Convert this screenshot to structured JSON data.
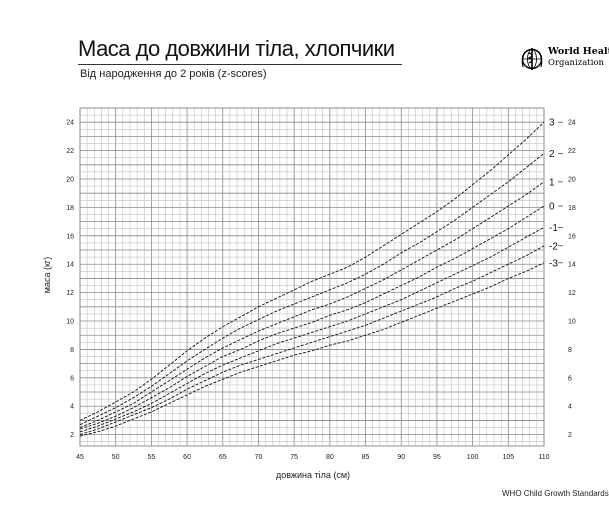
{
  "header": {
    "title": "Маса до довжини тіла, хлопчики",
    "subtitle": "Від народження до 2 років (z-scores)"
  },
  "logo": {
    "name": "World Health",
    "org": "Organization",
    "icon": "who-emblem-icon"
  },
  "footer": {
    "text": "WHO Child Growth Standards"
  },
  "chart_data": {
    "type": "line",
    "title": "Маса до довжини тіла, хлопчики",
    "subtitle": "Від народження до 2 років (z-scores)",
    "xlabel": "довжина тіла (см)",
    "ylabel": "маса (кг)",
    "xlim": [
      45,
      110
    ],
    "ylim": [
      1.2,
      25
    ],
    "xticks": [
      45,
      50,
      55,
      60,
      65,
      70,
      75,
      80,
      85,
      90,
      95,
      100,
      105,
      110
    ],
    "yticks": [
      2,
      4,
      6,
      8,
      10,
      12,
      14,
      16,
      18,
      20,
      22,
      24
    ],
    "grid": true,
    "x": [
      45,
      47.5,
      50,
      52.5,
      55,
      57.5,
      60,
      62.5,
      65,
      67.5,
      70,
      72.5,
      75,
      77.5,
      80,
      82.5,
      85,
      87.5,
      90,
      92.5,
      95,
      97.5,
      100,
      102.5,
      105,
      107.5,
      110
    ],
    "series": [
      {
        "name": "3",
        "values": [
          3.0,
          3.6,
          4.3,
          5.0,
          5.9,
          6.9,
          7.9,
          8.8,
          9.6,
          10.3,
          11.0,
          11.6,
          12.2,
          12.8,
          13.3,
          13.8,
          14.5,
          15.3,
          16.1,
          16.9,
          17.7,
          18.6,
          19.6,
          20.6,
          21.7,
          22.8,
          24.0
        ]
      },
      {
        "name": "2",
        "values": [
          2.7,
          3.3,
          3.9,
          4.6,
          5.4,
          6.3,
          7.2,
          8.0,
          8.8,
          9.5,
          10.1,
          10.7,
          11.2,
          11.7,
          12.2,
          12.7,
          13.3,
          14.0,
          14.8,
          15.5,
          16.3,
          17.1,
          18.0,
          18.9,
          19.8,
          20.8,
          21.8
        ]
      },
      {
        "name": "1",
        "values": [
          2.5,
          3.0,
          3.6,
          4.2,
          5.0,
          5.8,
          6.6,
          7.4,
          8.1,
          8.7,
          9.3,
          9.8,
          10.3,
          10.8,
          11.2,
          11.7,
          12.3,
          12.9,
          13.6,
          14.3,
          15.0,
          15.7,
          16.5,
          17.3,
          18.1,
          18.9,
          19.8
        ]
      },
      {
        "name": "0",
        "values": [
          2.4,
          2.8,
          3.3,
          3.9,
          4.6,
          5.3,
          6.1,
          6.8,
          7.5,
          8.0,
          8.6,
          9.1,
          9.5,
          9.9,
          10.4,
          10.8,
          11.3,
          11.9,
          12.5,
          13.1,
          13.8,
          14.4,
          15.1,
          15.8,
          16.5,
          17.3,
          18.1
        ]
      },
      {
        "name": "-1",
        "values": [
          2.2,
          2.6,
          3.1,
          3.6,
          4.2,
          4.9,
          5.6,
          6.3,
          6.9,
          7.4,
          7.9,
          8.4,
          8.8,
          9.2,
          9.6,
          10.0,
          10.5,
          11.0,
          11.5,
          12.1,
          12.7,
          13.3,
          13.9,
          14.5,
          15.2,
          15.9,
          16.6
        ]
      },
      {
        "name": "-2",
        "values": [
          2.0,
          2.4,
          2.9,
          3.4,
          3.9,
          4.5,
          5.2,
          5.8,
          6.4,
          6.9,
          7.3,
          7.7,
          8.1,
          8.5,
          8.9,
          9.3,
          9.7,
          10.2,
          10.7,
          11.2,
          11.7,
          12.3,
          12.8,
          13.4,
          14.0,
          14.6,
          15.3
        ]
      },
      {
        "name": "-3",
        "values": [
          1.9,
          2.2,
          2.6,
          3.1,
          3.6,
          4.2,
          4.8,
          5.4,
          5.9,
          6.4,
          6.8,
          7.2,
          7.6,
          7.9,
          8.3,
          8.6,
          9.0,
          9.4,
          9.9,
          10.4,
          10.9,
          11.4,
          11.9,
          12.4,
          13.0,
          13.5,
          14.1
        ]
      }
    ]
  }
}
